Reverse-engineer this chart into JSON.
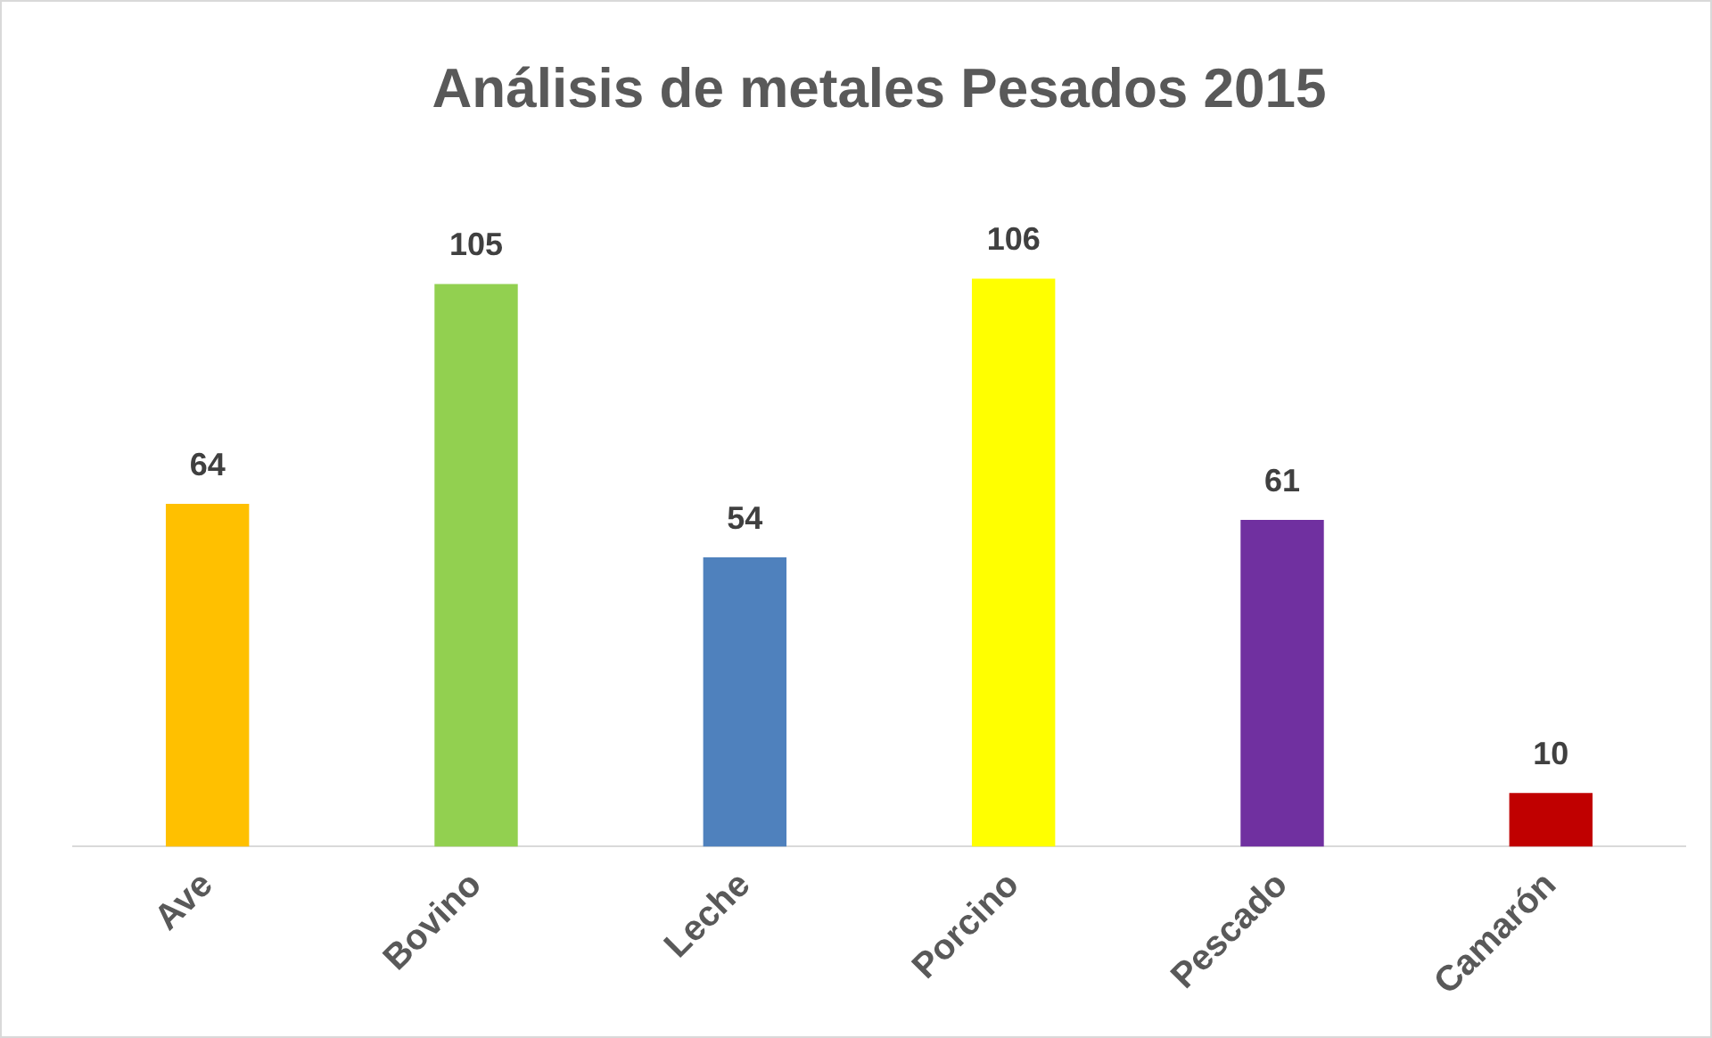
{
  "chart_data": {
    "type": "bar",
    "title": "Análisis de metales Pesados 2015",
    "categories": [
      "Ave",
      "Bovino",
      "Leche",
      "Porcino",
      "Pescado",
      "Camarón"
    ],
    "values": [
      64,
      105,
      54,
      106,
      61,
      10
    ],
    "colors": [
      "#ffc000",
      "#92d050",
      "#4f81bd",
      "#ffff00",
      "#7030a0",
      "#c00000"
    ],
    "data_labels": true,
    "grid": false,
    "legend": false
  }
}
